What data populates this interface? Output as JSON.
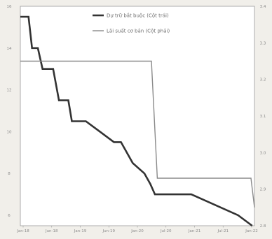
{
  "chart_data": {
    "type": "line",
    "legend": {
      "placement": "top-right",
      "entries": [
        {
          "label": "Dự trữ bắt buộc (Cột trái)",
          "color": "#333333"
        },
        {
          "label": "Lãi suất cơ bản (Cột phải)",
          "color": "#8a8a8a"
        }
      ]
    },
    "x_ticks": [
      "Jan-18",
      "Jun-18",
      "Jan-19",
      "Jun-19",
      "Jan-20",
      "Jul-20",
      "Jan-21",
      "Jul-21",
      "Jan-22"
    ],
    "y_left": {
      "ticks": [
        "6",
        "8",
        "10",
        "12",
        "14",
        "16"
      ],
      "ylim": [
        5.5,
        16
      ]
    },
    "y_right": {
      "ticks": [
        "2.8",
        "2.9",
        "3.0",
        "3.1",
        "3.2",
        "3.3",
        "3.4"
      ],
      "ylim": [
        2.8,
        3.4
      ]
    },
    "series": [
      {
        "name": "Dự trữ bắt buộc (Cột trái)",
        "axis": "left",
        "color": "#333333",
        "step": true,
        "x": [
          0,
          0.035,
          0.05,
          0.075,
          0.095,
          0.14,
          0.165,
          0.205,
          0.22,
          0.28,
          0.34,
          0.4,
          0.43,
          0.48,
          0.53,
          0.555,
          0.575,
          0.73,
          0.93,
          0.99
        ],
        "y": [
          15.5,
          15.5,
          14,
          14,
          13,
          13,
          11.5,
          11.5,
          10.5,
          10.5,
          10,
          9.5,
          9.5,
          8.5,
          8,
          7.5,
          7,
          7,
          6,
          5.5
        ]
      },
      {
        "name": "Lãi suất cơ bản (Cột phải)",
        "axis": "right",
        "color": "#8a8a8a",
        "step": true,
        "x": [
          0,
          0.56,
          0.585,
          0.985,
          1.0
        ],
        "y": [
          3.25,
          3.25,
          2.93,
          2.93,
          2.85
        ]
      }
    ],
    "grid": false
  }
}
